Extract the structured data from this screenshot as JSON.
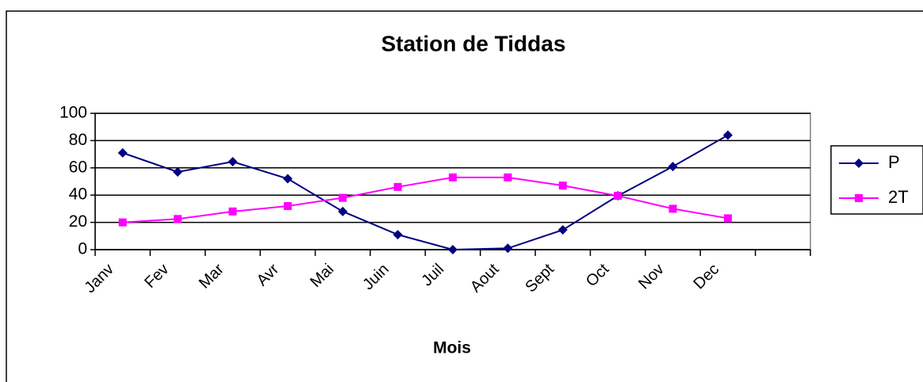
{
  "chart_data": {
    "type": "line",
    "title": "Station de Tiddas",
    "xlabel": "Mois",
    "categories": [
      "Janv",
      "Fev",
      "Mar",
      "Avr",
      "Mai",
      "Juin",
      "Juil",
      "Aout",
      "Sept",
      "Oct",
      "Nov",
      "Dec",
      null
    ],
    "series": [
      {
        "name": "P",
        "color": "#000080",
        "marker": "diamond",
        "values": [
          71,
          57,
          64.5,
          52,
          28,
          11,
          0,
          1,
          14.5,
          39.5,
          61,
          84,
          null
        ]
      },
      {
        "name": "2T",
        "color": "#ff00ff",
        "marker": "square",
        "values": [
          20,
          22.5,
          28,
          32,
          38,
          46,
          53,
          53,
          47,
          39.5,
          30,
          23,
          null
        ]
      }
    ],
    "ylim": [
      0,
      100
    ],
    "yticks": [
      0,
      20,
      40,
      60,
      80,
      100
    ],
    "grid": true,
    "legend": "right"
  }
}
